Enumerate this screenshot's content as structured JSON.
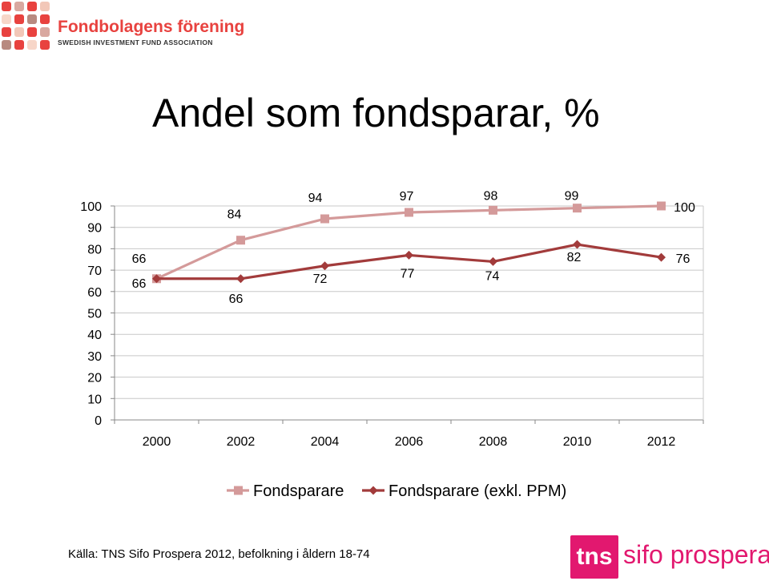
{
  "header": {
    "logo_name": "Fondbolagens förening",
    "logo_sub": "SWEDISH INVESTMENT FUND ASSOCIATION"
  },
  "title": "Andel som fondsparar, %",
  "chart_data": {
    "type": "line",
    "x": [
      2000,
      2002,
      2004,
      2006,
      2008,
      2010,
      2012
    ],
    "x_tick_labels": [
      "2000",
      "2002",
      "2004",
      "2006",
      "2008",
      "2010",
      "2012"
    ],
    "y_tick_labels": [
      "0",
      "10",
      "20",
      "30",
      "40",
      "50",
      "60",
      "70",
      "80",
      "90",
      "100"
    ],
    "ylim": [
      0,
      100
    ],
    "grid": true,
    "legend": "bottom",
    "series": [
      {
        "name": "Fondsparare",
        "values": [
          66,
          84,
          94,
          97,
          98,
          99,
          100
        ],
        "color": "#d49a9a",
        "marker": "square"
      },
      {
        "name": "Fondsparare (exkl. PPM)",
        "values": [
          66,
          66,
          72,
          77,
          74,
          82,
          76
        ],
        "color": "#a23b3b",
        "marker": "diamond"
      }
    ]
  },
  "source": "Källa: TNS Sifo Prospera 2012, befolkning i åldern 18-74",
  "brand": {
    "tns": "tns",
    "name": "sifo prospera"
  }
}
